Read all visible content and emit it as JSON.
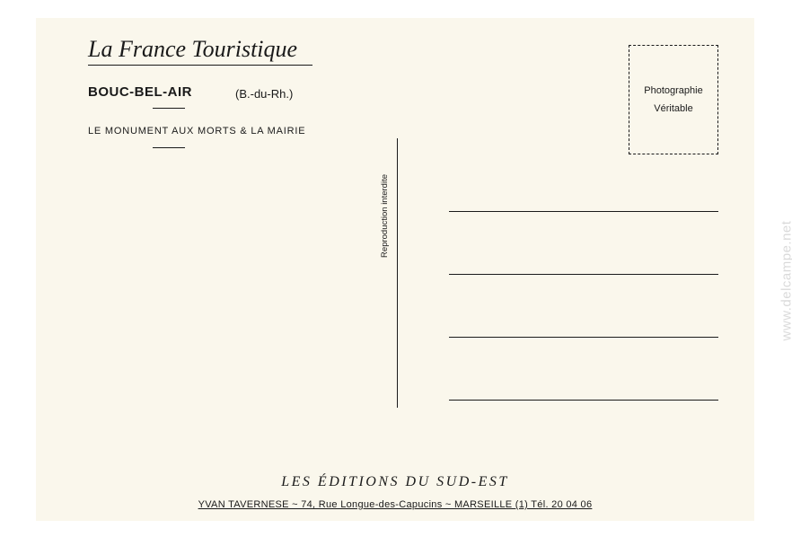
{
  "header": {
    "script_title": "La France Touristique"
  },
  "left": {
    "location": "BOUC-BEL-AIR",
    "department": "(B.-du-Rh.)",
    "caption": "LE MONUMENT AUX MORTS  &  LA MAIRIE"
  },
  "stamp": {
    "line1": "Photographie",
    "line2": "Véritable"
  },
  "center": {
    "vertical": "Reproduction interdite"
  },
  "footer": {
    "publisher": "LES ÉDITIONS DU SUD-EST",
    "address": "YVAN TAVERNESE  ~  74, Rue Longue-des-Capucins  ~  MARSEILLE  (1)      Tél. 20 04 06"
  },
  "watermark": "www.delcampe.net"
}
